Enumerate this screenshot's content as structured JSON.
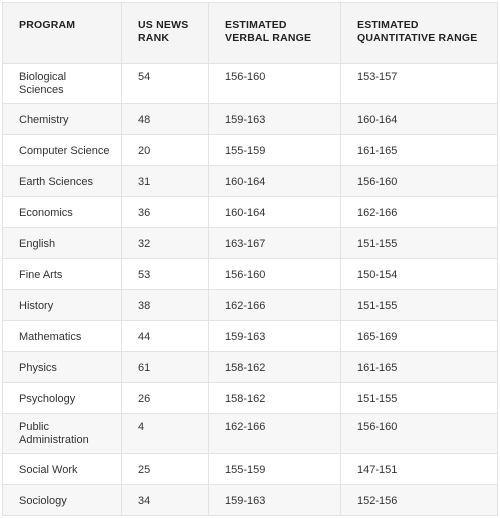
{
  "table": {
    "headers": [
      "PROGRAM",
      "US NEWS RANK",
      "ESTIMATED VERBAL RANGE",
      "ESTIMATED QUANTITATIVE RANGE"
    ],
    "rows": [
      {
        "program": "Biological Sciences",
        "rank": "54",
        "verbal": "156-160",
        "quant": "153-157"
      },
      {
        "program": "Chemistry",
        "rank": "48",
        "verbal": "159-163",
        "quant": "160-164"
      },
      {
        "program": "Computer Science",
        "rank": "20",
        "verbal": "155-159",
        "quant": "161-165"
      },
      {
        "program": "Earth Sciences",
        "rank": "31",
        "verbal": "160-164",
        "quant": "156-160"
      },
      {
        "program": "Economics",
        "rank": "36",
        "verbal": "160-164",
        "quant": "162-166"
      },
      {
        "program": "English",
        "rank": "32",
        "verbal": "163-167",
        "quant": "151-155"
      },
      {
        "program": "Fine Arts",
        "rank": "53",
        "verbal": "156-160",
        "quant": "150-154"
      },
      {
        "program": "History",
        "rank": "38",
        "verbal": "162-166",
        "quant": "151-155"
      },
      {
        "program": "Mathematics",
        "rank": "44",
        "verbal": "159-163",
        "quant": "165-169"
      },
      {
        "program": "Physics",
        "rank": "61",
        "verbal": "158-162",
        "quant": "161-165"
      },
      {
        "program": "Psychology",
        "rank": "26",
        "verbal": "158-162",
        "quant": "151-155"
      },
      {
        "program": "Public Administration",
        "rank": "4",
        "verbal": "162-166",
        "quant": "156-160"
      },
      {
        "program": "Social Work",
        "rank": "25",
        "verbal": "155-159",
        "quant": "147-151"
      },
      {
        "program": "Sociology",
        "rank": "34",
        "verbal": "159-163",
        "quant": "152-156"
      }
    ]
  }
}
